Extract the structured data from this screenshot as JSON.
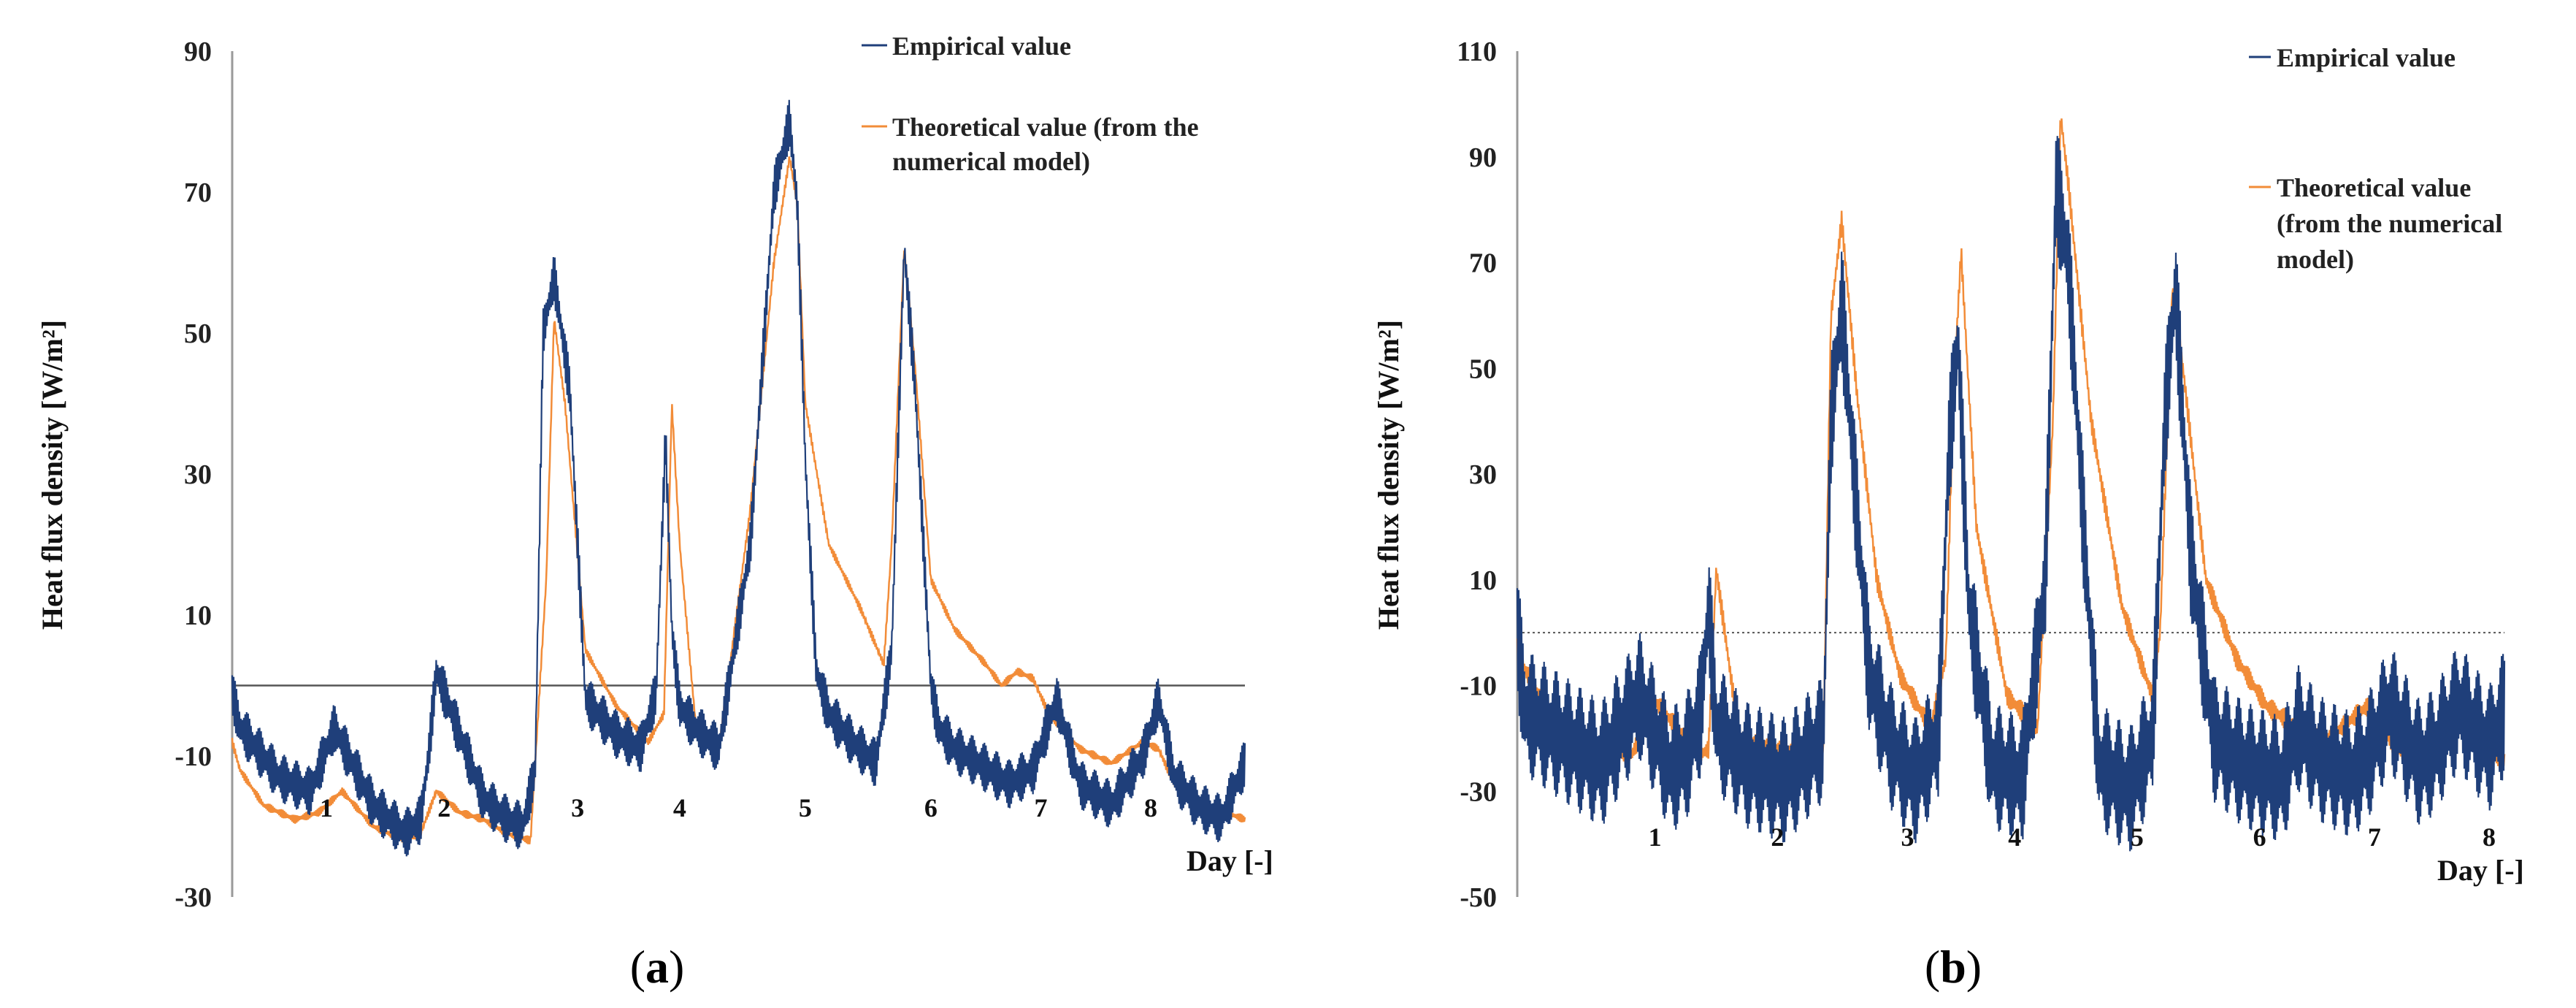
{
  "colors": {
    "empirical": "#1F3F7A",
    "theoretical": "#F28C38",
    "axis": "#999999",
    "zero_line": "#555555"
  },
  "chart_data": [
    {
      "type": "line",
      "panel": "a",
      "panel_open": "(",
      "panel_close": ")",
      "ylabel": "Heat flux density  [W/m²]",
      "xlabel": "Day [-]",
      "ylim": [
        -30,
        90
      ],
      "yticks": [
        90,
        70,
        50,
        30,
        10,
        -10,
        -30
      ],
      "ytick_labels": [
        "90",
        "70",
        "50",
        "30",
        "10",
        "-10",
        "-30"
      ],
      "xlim": [
        0,
        8
      ],
      "day_labels": [
        "1",
        "2",
        "3",
        "4",
        "5",
        "6",
        "7",
        "8"
      ],
      "day_label_x": [
        0.6,
        1.35,
        2.2,
        2.85,
        3.65,
        4.45,
        5.15,
        5.85
      ],
      "legend": [
        "Empirical value",
        "Theoretical value (from the",
        "numerical model)"
      ],
      "series": [
        {
          "name": "Empirical value",
          "color": "#1F3F7A",
          "oscillation": 3.5,
          "x": [
            0,
            0.05,
            0.3,
            0.5,
            0.65,
            0.9,
            1.1,
            1.2,
            1.25,
            1.3,
            1.45,
            1.6,
            1.75,
            1.85,
            1.93,
            1.98,
            2.05,
            2.15,
            2.25,
            2.45,
            2.6,
            2.7,
            2.76,
            2.8,
            2.85,
            2.95,
            3.1,
            3.3,
            3.45,
            3.55,
            3.6,
            3.65,
            3.72,
            3.8,
            3.95,
            4.1,
            4.2,
            4.28,
            4.35,
            4.45,
            4.5,
            4.6,
            4.75,
            4.95,
            5.1,
            5.25,
            5.4,
            5.6,
            5.8,
            5.9,
            6.0,
            6.15,
            6.3,
            6.45
          ],
          "values": [
            -1,
            -6,
            -13,
            -15,
            -6,
            -17,
            -21,
            -19,
            -10,
            2,
            -7,
            -16,
            -19,
            -20,
            -12,
            50,
            58,
            42,
            -2,
            -7,
            -9,
            -1,
            35,
            8,
            -3,
            -6,
            -9,
            20,
            70,
            80,
            68,
            32,
            2,
            -4,
            -8,
            -11,
            5,
            62,
            42,
            0,
            -6,
            -9,
            -11,
            -14,
            -12,
            -2,
            -14,
            -17,
            -10,
            -2,
            -13,
            -17,
            -19,
            -11
          ]
        },
        {
          "name": "Theoretical value (from the numerical model)",
          "color": "#F28C38",
          "oscillation": 0.6,
          "x": [
            0,
            0.05,
            0.2,
            0.4,
            0.55,
            0.7,
            0.9,
            1.1,
            1.2,
            1.3,
            1.45,
            1.6,
            1.75,
            1.9,
            2.0,
            2.05,
            2.12,
            2.25,
            2.45,
            2.65,
            2.75,
            2.8,
            2.85,
            2.95,
            3.1,
            3.3,
            3.45,
            3.55,
            3.6,
            3.65,
            3.8,
            4.0,
            4.15,
            4.2,
            4.28,
            4.35,
            4.45,
            4.6,
            4.8,
            4.9,
            5.0,
            5.1,
            5.2,
            5.4,
            5.6,
            5.8,
            5.9,
            6.0,
            6.2,
            6.45
          ],
          "values": [
            -8,
            -12,
            -17,
            -19,
            -18,
            -15,
            -20,
            -22,
            -21,
            -15,
            -18,
            -19,
            -21,
            -22,
            15,
            52,
            40,
            5,
            -3,
            -8,
            -4,
            40,
            20,
            -5,
            -9,
            25,
            60,
            75,
            68,
            40,
            20,
            11,
            3,
            20,
            62,
            45,
            15,
            8,
            3,
            0,
            2,
            1,
            -4,
            -9,
            -11,
            -8,
            -9,
            -14,
            -17,
            -19
          ]
        }
      ]
    },
    {
      "type": "line",
      "panel": "b",
      "panel_open": "(",
      "panel_close": ")",
      "ylabel": "Heat flux density  [W/m²]",
      "xlabel": "Day [-]",
      "ylim": [
        -50,
        110
      ],
      "yticks": [
        110,
        90,
        70,
        50,
        30,
        10,
        -10,
        -30,
        -50
      ],
      "ytick_labels": [
        "110",
        "90",
        "70",
        "50",
        "30",
        "10",
        "-10",
        "-30",
        "-50"
      ],
      "xlim": [
        0,
        8
      ],
      "day_labels": [
        "1",
        "2",
        "3",
        "4",
        "5",
        "6",
        "7",
        "8"
      ],
      "day_label_x": [
        0.9,
        1.7,
        2.55,
        3.25,
        4.05,
        4.85,
        5.6,
        6.35
      ],
      "legend": [
        "Empirical value",
        "Theoretical value",
        "(from the numerical",
        "model)"
      ],
      "series": [
        {
          "name": "Empirical value",
          "color": "#1F3F7A",
          "oscillation": 12,
          "x": [
            0,
            0.05,
            0.3,
            0.55,
            0.8,
            1.0,
            1.1,
            1.2,
            1.25,
            1.3,
            1.5,
            1.75,
            2.0,
            2.05,
            2.12,
            2.2,
            2.3,
            2.45,
            2.6,
            2.75,
            2.82,
            2.88,
            2.95,
            3.1,
            3.3,
            3.45,
            3.52,
            3.6,
            3.7,
            3.8,
            4.0,
            4.15,
            4.23,
            4.3,
            4.4,
            4.55,
            4.75,
            5.0,
            5.1,
            5.25,
            5.45,
            5.55,
            5.7,
            5.9,
            6.0,
            6.15,
            6.35,
            6.45
          ],
          "values": [
            0,
            -15,
            -20,
            -25,
            -12,
            -26,
            -24,
            -15,
            5,
            -18,
            -25,
            -28,
            -20,
            40,
            62,
            30,
            -8,
            -22,
            -28,
            -20,
            35,
            55,
            5,
            -25,
            -28,
            10,
            85,
            70,
            20,
            -25,
            -30,
            -20,
            40,
            65,
            15,
            -20,
            -25,
            -28,
            -18,
            -24,
            -27,
            -24,
            -14,
            -25,
            -22,
            -14,
            -22,
            -15
          ]
        },
        {
          "name": "Theoretical value (from the numerical model)",
          "color": "#F28C38",
          "oscillation": 2,
          "x": [
            0,
            0.05,
            0.2,
            0.5,
            0.75,
            0.9,
            1.1,
            1.2,
            1.25,
            1.3,
            1.45,
            1.7,
            1.9,
            2.0,
            2.05,
            2.12,
            2.22,
            2.35,
            2.5,
            2.7,
            2.8,
            2.85,
            2.9,
            3.0,
            3.2,
            3.4,
            3.5,
            3.55,
            3.6,
            3.75,
            3.95,
            4.15,
            4.2,
            4.28,
            4.35,
            4.5,
            4.7,
            4.9,
            5.1,
            5.3,
            5.55,
            5.75,
            5.95,
            6.15,
            6.35,
            6.45
          ],
          "values": [
            -3,
            -7,
            -15,
            -22,
            -23,
            -13,
            -20,
            -23,
            -22,
            12,
            -20,
            -22,
            -23,
            -22,
            60,
            78,
            45,
            10,
            -8,
            -18,
            -5,
            45,
            72,
            20,
            -12,
            -18,
            40,
            98,
            85,
            40,
            5,
            -12,
            0,
            65,
            50,
            10,
            -5,
            -14,
            -18,
            -20,
            -14,
            -22,
            -24,
            -15,
            -23,
            -24
          ]
        }
      ]
    }
  ]
}
